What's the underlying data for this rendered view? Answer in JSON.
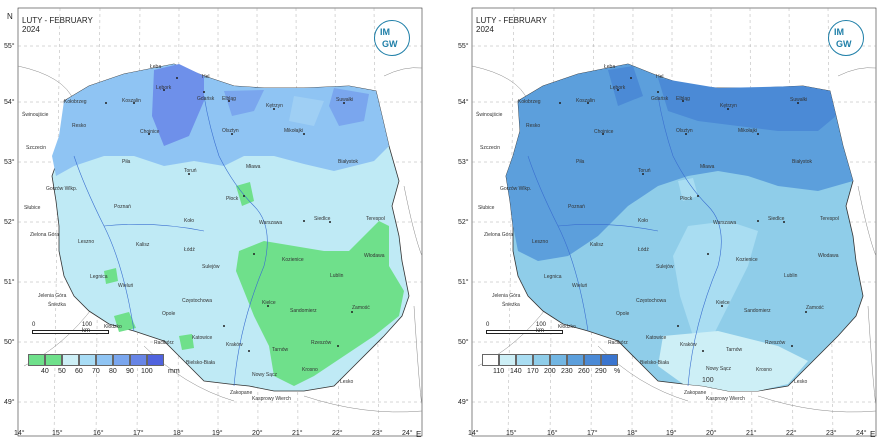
{
  "panels": [
    {
      "title_line1": "LUTY - FEBRUARY",
      "title_line2": "2024",
      "legend_values": [
        "40",
        "50",
        "60",
        "70",
        "80",
        "90",
        "100"
      ],
      "legend_unit": "mm",
      "legend_colors": [
        "#6fe08b",
        "#6fe08b",
        "#cdeff6",
        "#a8dcf5",
        "#8fc4f3",
        "#7aa6ee",
        "#6785e6",
        "#5063de"
      ],
      "logo_text_top": "IM",
      "logo_text_bottom": "GW",
      "scale_label": "100 km",
      "scale_zero": "0"
    },
    {
      "title_line1": "LUTY - FEBRUARY",
      "title_line2": "2024",
      "legend_values": [
        "110",
        "140",
        "170",
        "200",
        "230",
        "260",
        "290"
      ],
      "legend_unit": "%",
      "legend_colors": [
        "#ffffff",
        "#cdeff6",
        "#a9ddf2",
        "#8fcde9",
        "#72b6e3",
        "#5c9fdc",
        "#4b8ad6",
        "#3a75cf"
      ],
      "logo_text_top": "IM",
      "logo_text_bottom": "GW",
      "scale_label": "100 km",
      "scale_zero": "0",
      "extra_label": "100"
    }
  ],
  "axis_north": "N",
  "axis_east": "E",
  "lat_labels": [
    "55°",
    "54°",
    "53°",
    "52°",
    "51°",
    "50°",
    "49°"
  ],
  "lon_labels": [
    "14°",
    "15°",
    "16°",
    "17°",
    "18°",
    "19°",
    "20°",
    "21°",
    "22°",
    "23°",
    "24°"
  ],
  "cities": [
    "Hel",
    "Łeba",
    "Lębork",
    "Gdańsk",
    "Elbląg",
    "Kętrzyn",
    "Suwałki",
    "Kołobrzeg",
    "Koszalin",
    "Świnoujście",
    "Chojnice",
    "Olsztyn",
    "Mikołajki",
    "Resko",
    "Szczecin",
    "Piła",
    "Toruń",
    "Mława",
    "Białystok",
    "Gorzów Wlkp.",
    "Płock",
    "Słubice",
    "Poznań",
    "Koło",
    "Warszawa",
    "Siedlce",
    "Terespol",
    "Zielona Góra",
    "Leszno",
    "Kalisz",
    "Łódź",
    "Włodawa",
    "Kozienice",
    "Legnica",
    "Wieluń",
    "Sulejów",
    "Lublin",
    "Jelenia Góra",
    "Śnieżka",
    "Częstochowa",
    "Opole",
    "Kielce",
    "Sandomierz",
    "Zamość",
    "Kłodzko",
    "Katowice",
    "Racibórz",
    "Kraków",
    "Tarnów",
    "Rzeszów",
    "Bielsko-Biała",
    "Nowy Sącz",
    "Krosno",
    "Lesko",
    "Zakopane",
    "Kasprowy Wierch"
  ]
}
